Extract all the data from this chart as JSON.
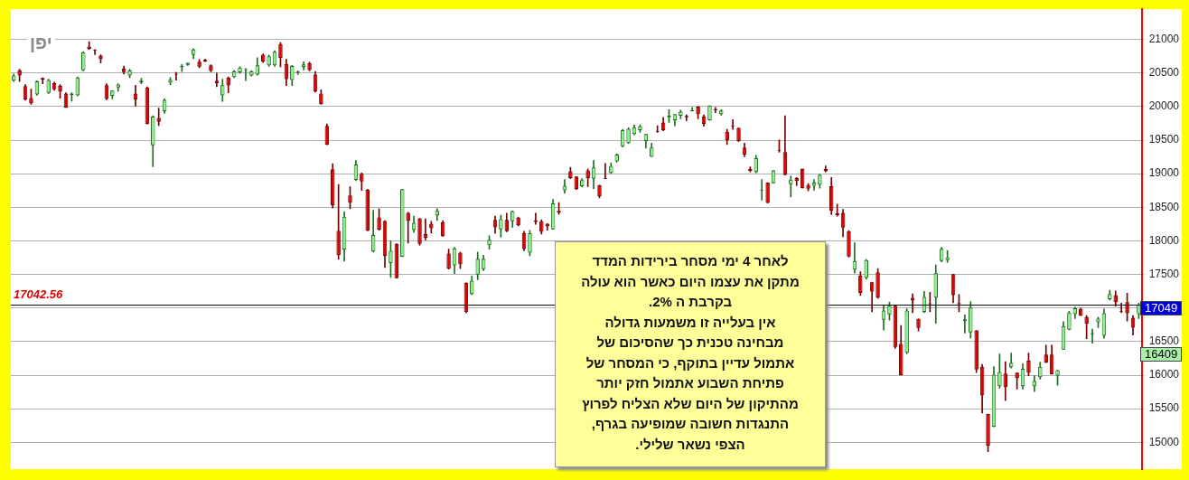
{
  "chart_data": {
    "type": "candlestick",
    "title": "יפן",
    "categories": [
      null,
      null,
      null,
      null,
      null,
      null,
      null,
      null,
      null,
      null,
      null,
      null,
      null,
      null,
      null,
      null,
      null,
      null,
      null,
      null,
      null,
      null,
      null,
      null,
      null,
      null,
      null,
      null,
      null,
      null,
      null,
      null,
      null,
      null,
      null,
      null,
      null,
      null,
      null,
      null,
      null,
      null,
      null,
      null,
      null,
      null,
      null,
      null,
      null,
      null,
      null,
      null,
      null,
      null,
      null,
      null,
      null,
      null,
      null,
      null,
      null,
      null,
      null,
      null,
      null,
      null,
      null,
      null,
      null,
      null,
      null,
      null,
      null,
      null,
      null,
      null,
      null,
      null,
      null,
      null,
      null,
      null,
      null,
      null,
      null,
      null,
      null,
      null,
      null,
      null,
      null,
      null,
      null,
      null,
      null,
      null,
      null,
      null,
      null,
      null,
      null,
      null,
      null,
      null,
      null,
      null,
      null,
      null,
      null,
      null,
      null,
      null,
      null,
      null,
      null,
      null,
      null,
      null,
      null,
      null,
      null,
      null,
      null,
      null,
      null,
      null,
      null,
      null,
      null,
      null,
      null,
      null,
      null,
      null,
      null,
      null,
      null,
      null,
      null,
      null,
      null,
      null,
      null,
      null,
      null,
      null,
      null,
      null,
      null,
      null,
      null,
      null,
      null,
      null,
      null,
      null,
      null,
      null,
      null,
      null,
      null,
      null,
      null,
      null,
      null,
      null,
      null,
      null,
      null,
      null,
      null,
      null,
      null,
      null,
      null,
      null,
      null,
      null,
      null,
      null,
      null,
      null,
      null,
      null,
      null,
      null,
      null,
      null,
      null,
      null,
      null,
      null,
      null,
      null,
      null
    ],
    "ohlc": [
      [
        20386,
        20486,
        20373,
        20464
      ],
      [
        20536,
        20555,
        20373,
        20464
      ],
      [
        20305,
        20327,
        20095,
        20105
      ],
      [
        20127,
        20259,
        20032,
        20050
      ],
      [
        20182,
        20386,
        20168,
        20377
      ],
      [
        20427,
        20427,
        20341,
        20400
      ],
      [
        20205,
        20409,
        20195,
        20395
      ],
      [
        20350,
        20364,
        20241,
        20259
      ],
      [
        20309,
        20327,
        20123,
        20223
      ],
      [
        20195,
        20205,
        19986,
        19986
      ],
      [
        20173,
        20205,
        20082,
        20195
      ],
      [
        20168,
        20441,
        20159,
        20432
      ],
      [
        20541,
        20818,
        20532,
        20809
      ],
      [
        20895,
        20968,
        20850,
        20859
      ],
      [
        20845,
        20850,
        20773,
        20830
      ],
      [
        20759,
        20773,
        20650,
        20705
      ],
      [
        20318,
        20341,
        20100,
        20114
      ],
      [
        20159,
        20236,
        20114,
        20236
      ],
      [
        20286,
        20341,
        20227,
        20327
      ],
      [
        20564,
        20605,
        20486,
        20514
      ],
      [
        20464,
        20555,
        20432,
        20536
      ],
      [
        20195,
        20318,
        20005,
        20105
      ],
      [
        20359,
        20423,
        20341,
        20386
      ],
      [
        20286,
        20295,
        19741,
        19741
      ],
      [
        19423,
        19864,
        19105,
        19850
      ],
      [
        19832,
        19977,
        19718,
        19773
      ],
      [
        19932,
        20114,
        19900,
        20100
      ],
      [
        20359,
        20432,
        20327,
        20400
      ],
      [
        20491,
        20509,
        20395,
        20477
      ],
      [
        20591,
        20627,
        20523,
        20605
      ],
      [
        20623,
        20650,
        20614,
        20650
      ],
      [
        20768,
        20864,
        20714,
        20850
      ],
      [
        20668,
        20700,
        20580,
        20595
      ],
      [
        20695,
        20709,
        20668,
        20673
      ],
      [
        20614,
        20623,
        20518,
        20532
      ],
      [
        20386,
        20500,
        20295,
        20350
      ],
      [
        20168,
        20409,
        20077,
        20318
      ],
      [
        20432,
        20441,
        20205,
        20314
      ],
      [
        20441,
        20541,
        20432,
        20523
      ],
      [
        20509,
        20595,
        20495,
        20582
      ],
      [
        20545,
        20568,
        20386,
        20550
      ],
      [
        20464,
        20536,
        20455,
        20523
      ],
      [
        20477,
        20727,
        20468,
        20614
      ],
      [
        20773,
        20786,
        20655,
        20668
      ],
      [
        20614,
        20764,
        20600,
        20750
      ],
      [
        20614,
        20832,
        20600,
        20818
      ],
      [
        20932,
        20955,
        20591,
        20727
      ],
      [
        20636,
        20705,
        20314,
        20409
      ],
      [
        20395,
        20614,
        20314,
        20605
      ],
      [
        20500,
        20532,
        20477,
        20520
      ],
      [
        20591,
        20668,
        20545,
        20627
      ],
      [
        20645,
        20659,
        20532,
        20545
      ],
      [
        20477,
        20523,
        20214,
        20223
      ],
      [
        20195,
        20250,
        20032,
        20036
      ],
      [
        19714,
        19741,
        19432,
        19432
      ],
      [
        19068,
        19150,
        18487,
        18532
      ],
      [
        18150,
        18841,
        17727,
        17787
      ],
      [
        17873,
        18432,
        17696,
        18359
      ],
      [
        18677,
        18805,
        18477,
        18568
      ],
      [
        18909,
        19195,
        18895,
        19136
      ],
      [
        19000,
        19010,
        18750,
        18886
      ],
      [
        18759,
        18770,
        18150,
        18150
      ],
      [
        17841,
        18455,
        17832,
        18086
      ],
      [
        18350,
        18477,
        18159,
        18168
      ],
      [
        18295,
        18300,
        17605,
        17773
      ],
      [
        17668,
        18000,
        17455,
        17850
      ],
      [
        17957,
        17957,
        17444,
        17444
      ],
      [
        17765,
        18769,
        17765,
        18769
      ],
      [
        18416,
        18425,
        17966,
        18300
      ],
      [
        18166,
        18367,
        18126,
        18269
      ],
      [
        18336,
        18336,
        17935,
        17957
      ],
      [
        18100,
        18327,
        18015,
        18046
      ],
      [
        18256,
        18291,
        18113,
        18189
      ],
      [
        18381,
        18479,
        18305,
        18447
      ],
      [
        18278,
        18300,
        18068,
        18068
      ],
      [
        17810,
        17877,
        17578,
        17587
      ],
      [
        17636,
        17903,
        17511,
        17890
      ],
      [
        17823,
        17832,
        17587,
        17654
      ],
      [
        17377,
        17377,
        16931,
        16940
      ],
      [
        17208,
        17475,
        17199,
        17408
      ],
      [
        17497,
        17832,
        17422,
        17734
      ],
      [
        17578,
        17787,
        17555,
        17734
      ],
      [
        17935,
        18077,
        17877,
        18015
      ],
      [
        18314,
        18367,
        18113,
        18202
      ],
      [
        18171,
        18381,
        18055,
        18322
      ],
      [
        18314,
        18412,
        18135,
        18144
      ],
      [
        18291,
        18447,
        18202,
        18443
      ],
      [
        18345,
        18354,
        18224,
        18233
      ],
      [
        18113,
        18144,
        17854,
        17877
      ],
      [
        17823,
        18158,
        17778,
        18113
      ],
      [
        18305,
        18412,
        18247,
        18282
      ],
      [
        18291,
        18314,
        18100,
        18135
      ],
      [
        18256,
        18256,
        18158,
        18216
      ],
      [
        18171,
        18617,
        18171,
        18559
      ],
      [
        18447,
        18572,
        18394,
        18425
      ],
      [
        18754,
        18913,
        18709,
        18822
      ],
      [
        19035,
        19094,
        18926,
        18935
      ],
      [
        18958,
        18958,
        18763,
        18768
      ],
      [
        18813,
        18926,
        18800,
        18904
      ],
      [
        19049,
        19071,
        18809,
        18935
      ],
      [
        18926,
        19198,
        18777,
        19094
      ],
      [
        18831,
        18831,
        18641,
        18664
      ],
      [
        18940,
        19153,
        18926,
        18926
      ],
      [
        19013,
        19162,
        19003,
        19117
      ],
      [
        19185,
        19298,
        19171,
        19284
      ],
      [
        19411,
        19660,
        19398,
        19647
      ],
      [
        19456,
        19683,
        19447,
        19669
      ],
      [
        19592,
        19728,
        19579,
        19692
      ],
      [
        19647,
        19728,
        19615,
        19706
      ],
      [
        19488,
        19592,
        19379,
        19592
      ],
      [
        19253,
        19456,
        19253,
        19388
      ],
      [
        19638,
        19715,
        19615,
        19624
      ],
      [
        19764,
        19841,
        19638,
        19647
      ],
      [
        19841,
        19955,
        19764,
        19864
      ],
      [
        19796,
        19887,
        19715,
        19887
      ],
      [
        19864,
        19946,
        19819,
        19923
      ],
      [
        19860,
        19878,
        19787,
        19841
      ],
      [
        19932,
        19986,
        19932,
        19946
      ],
      [
        20000,
        20000,
        19819,
        19887
      ],
      [
        19850,
        19878,
        19706,
        19742
      ],
      [
        19796,
        20014,
        19796,
        20014
      ],
      [
        19955,
        19986,
        19909,
        19946
      ],
      [
        19887,
        19955,
        19873,
        19941
      ],
      [
        19624,
        19660,
        19434,
        19502
      ],
      [
        19715,
        19805,
        19660,
        19706
      ],
      [
        19683,
        19683,
        19479,
        19488
      ],
      [
        19388,
        19456,
        19253,
        19284
      ],
      [
        19071,
        19103,
        19026,
        19040
      ],
      [
        19026,
        19275,
        19012,
        19230
      ],
      [
        18750,
        18913,
        18605,
        18750
      ],
      [
        18868,
        18868,
        18564,
        18564
      ],
      [
        18858,
        19049,
        18858,
        19049
      ],
      [
        19357,
        19502,
        19321,
        19343
      ],
      [
        19321,
        19864,
        18981,
        18981
      ],
      [
        18845,
        18967,
        18655,
        18913
      ],
      [
        18935,
        18945,
        18822,
        18890
      ],
      [
        19071,
        19071,
        18786,
        18786
      ],
      [
        18831,
        18854,
        18745,
        18777
      ],
      [
        18822,
        18913,
        18754,
        18868
      ],
      [
        18836,
        18990,
        18786,
        18981
      ],
      [
        19071,
        19117,
        19026,
        19035
      ],
      [
        18813,
        18945,
        18392,
        18446
      ],
      [
        18411,
        18547,
        18366,
        18380
      ],
      [
        18416,
        18470,
        18062,
        18198
      ],
      [
        18144,
        18153,
        17759,
        17768
      ],
      [
        17573,
        17972,
        17519,
        17700
      ],
      [
        17482,
        17541,
        17188,
        17224
      ],
      [
        17451,
        17723,
        17428,
        17714
      ],
      [
        17383,
        17383,
        16943,
        17247
      ],
      [
        17532,
        17587,
        17143,
        17156
      ],
      [
        16826,
        17043,
        16672,
        16962
      ],
      [
        16907,
        17088,
        16817,
        17034
      ],
      [
        17034,
        17043,
        16400,
        16422
      ],
      [
        16463,
        16740,
        16001,
        16001
      ],
      [
        16332,
        16989,
        16318,
        16962
      ],
      [
        17152,
        17211,
        16930,
        17111
      ],
      [
        16839,
        16839,
        16658,
        16703
      ],
      [
        16943,
        17247,
        16930,
        17165
      ],
      [
        17066,
        17233,
        16943,
        17057
      ],
      [
        17156,
        17641,
        16771,
        17519
      ],
      [
        17700,
        17904,
        17686,
        17881
      ],
      [
        17713,
        17858,
        17677,
        17754
      ],
      [
        17505,
        17505,
        17079,
        17193
      ],
      [
        17075,
        17202,
        16943,
        17057
      ],
      [
        16808,
        16898,
        16626,
        16830
      ],
      [
        16635,
        17097,
        16554,
        17007
      ],
      [
        16667,
        16667,
        16037,
        16083
      ],
      [
        16124,
        16160,
        15435,
        15698
      ],
      [
        15421,
        15421,
        14860,
        14950
      ],
      [
        15232,
        16126,
        15232,
        16006
      ],
      [
        15836,
        16314,
        15805,
        16046
      ],
      [
        16024,
        16202,
        15621,
        15822
      ],
      [
        16118,
        16328,
        16104,
        16185
      ],
      [
        16037,
        16037,
        15791,
        15957
      ],
      [
        15836,
        16171,
        15791,
        16095
      ],
      [
        16216,
        16328,
        15992,
        16037
      ],
      [
        15836,
        15992,
        15755,
        15912
      ],
      [
        15970,
        16193,
        15939,
        16126
      ],
      [
        16305,
        16448,
        16185,
        16185
      ],
      [
        16305,
        16448,
        16015,
        16015
      ],
      [
        15992,
        16073,
        15849,
        16073
      ],
      [
        16381,
        16797,
        16381,
        16730
      ],
      [
        16676,
        16953,
        16676,
        16931
      ],
      [
        16909,
        17012,
        16842,
        16998
      ],
      [
        16985,
        16998,
        16886,
        16886
      ],
      [
        16864,
        16886,
        16542,
        16766
      ],
      [
        16609,
        16685,
        16475,
        16627
      ],
      [
        16788,
        16864,
        16708,
        16842
      ],
      [
        16587,
        16985,
        16551,
        16922
      ],
      [
        17132,
        17266,
        17119,
        17208
      ],
      [
        17190,
        17253,
        17029,
        17088
      ],
      [
        16953,
        17074,
        16931,
        16940
      ],
      [
        17088,
        17222,
        16806,
        16922
      ],
      [
        16855,
        16886,
        16596,
        16708
      ],
      [
        16909,
        17074,
        16842,
        17049
      ]
    ],
    "ylim": [
      14600,
      21450
    ],
    "yticks": [
      15000,
      15500,
      16000,
      16500,
      {
        "value": 17000,
        "label": null
      },
      17500,
      18000,
      18500,
      19000,
      19500,
      20000,
      20500,
      21000
    ],
    "grid": "y",
    "tick_labels": "y",
    "ref_lines": [
      {
        "axis": "y",
        "value": 17042.56,
        "label": "17042.56"
      }
    ],
    "annotations": [
      "לאחר 4 ימי מסחר בירידות המדד\nמתקן את עצמו היום כאשר הוא עולה\nבקרבת ה 2%.\nאין בעלייה זו משמעות גדולה\nמבחינה טכנית כך שהסיכום של\nאתמול עדיין בתוקף, כי המסחר של\nפתיחת השבוע אתמול חזק יותר\nמהתיקון של היום שלא הצליח לפרוץ\nהתנגדות חשובה שמופיעה בגרף,\nהצפי נשאר שלילי.",
      "17049",
      "16409"
    ]
  }
}
